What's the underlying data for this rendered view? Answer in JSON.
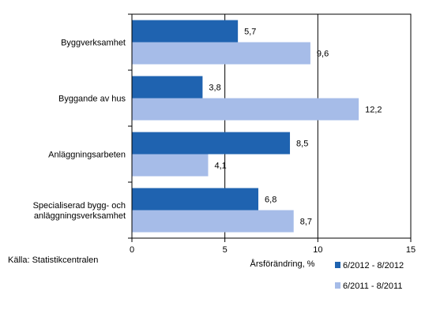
{
  "source_note": "Källa: Statistikcentralen",
  "chart_data": {
    "type": "bar",
    "orientation": "horizontal",
    "categories": [
      [
        "Byggverksamhet"
      ],
      [
        "Byggande av hus"
      ],
      [
        "Anläggningsarbeten"
      ],
      [
        "Specialiserad bygg- och",
        "anläggningsverksamhet"
      ]
    ],
    "series": [
      {
        "name": "6/2012 - 8/2012",
        "color": "#1f63b0",
        "values": [
          5.7,
          3.8,
          8.5,
          6.8
        ],
        "labels": [
          "5,7",
          "3,8",
          "8,5",
          "6,8"
        ]
      },
      {
        "name": "6/2011 - 8/2011",
        "color": "#a6bce8",
        "values": [
          9.6,
          12.2,
          4.1,
          8.7
        ],
        "labels": [
          "9,6",
          "12,2",
          "4,1",
          "8,7"
        ]
      }
    ],
    "xlabel": "Årsförändring, %",
    "xlim": [
      0,
      15
    ],
    "xticks": [
      0,
      5,
      10,
      15
    ],
    "grid": "vertical",
    "legend_position": "bottom-right"
  }
}
